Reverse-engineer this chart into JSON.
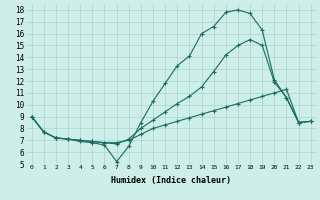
{
  "xlabel": "Humidex (Indice chaleur)",
  "bg_color": "#ceeee8",
  "line_color": "#1a6b62",
  "grid_color": "#aad4ce",
  "xlim": [
    -0.5,
    23.5
  ],
  "ylim": [
    5,
    18.5
  ],
  "xticks": [
    0,
    1,
    2,
    3,
    4,
    5,
    6,
    7,
    8,
    9,
    10,
    11,
    12,
    13,
    14,
    15,
    16,
    17,
    18,
    19,
    20,
    21,
    22,
    23
  ],
  "yticks": [
    5,
    6,
    7,
    8,
    9,
    10,
    11,
    12,
    13,
    14,
    15,
    16,
    17,
    18
  ],
  "line1_x": [
    0,
    1,
    2,
    3,
    4,
    5,
    6,
    7,
    8,
    9,
    10,
    11,
    12,
    13,
    14,
    15,
    16,
    17,
    18,
    19,
    20,
    21,
    22,
    23
  ],
  "line1_y": [
    9.0,
    7.7,
    7.2,
    7.1,
    6.9,
    6.8,
    6.6,
    5.2,
    6.5,
    8.5,
    10.3,
    11.8,
    13.3,
    14.1,
    16.0,
    16.6,
    17.8,
    18.0,
    17.7,
    16.3,
    12.1,
    10.6,
    8.5,
    8.6
  ],
  "line2_x": [
    0,
    1,
    2,
    3,
    4,
    5,
    6,
    7,
    8,
    9,
    10,
    11,
    12,
    13,
    14,
    15,
    16,
    17,
    18,
    19,
    20,
    21,
    22,
    23
  ],
  "line2_y": [
    9.0,
    7.7,
    7.2,
    7.1,
    7.0,
    6.9,
    6.8,
    6.7,
    7.1,
    8.0,
    8.7,
    9.4,
    10.1,
    10.7,
    11.5,
    12.8,
    14.2,
    15.0,
    15.5,
    15.0,
    11.9,
    10.6,
    8.5,
    8.6
  ],
  "line3_x": [
    0,
    1,
    2,
    3,
    4,
    5,
    6,
    7,
    8,
    9,
    10,
    11,
    12,
    13,
    14,
    15,
    16,
    17,
    18,
    19,
    20,
    21,
    22,
    23
  ],
  "line3_y": [
    9.0,
    7.7,
    7.2,
    7.1,
    7.0,
    6.9,
    6.8,
    6.8,
    7.0,
    7.5,
    8.0,
    8.3,
    8.6,
    8.9,
    9.2,
    9.5,
    9.8,
    10.1,
    10.4,
    10.7,
    11.0,
    11.3,
    8.5,
    8.6
  ]
}
